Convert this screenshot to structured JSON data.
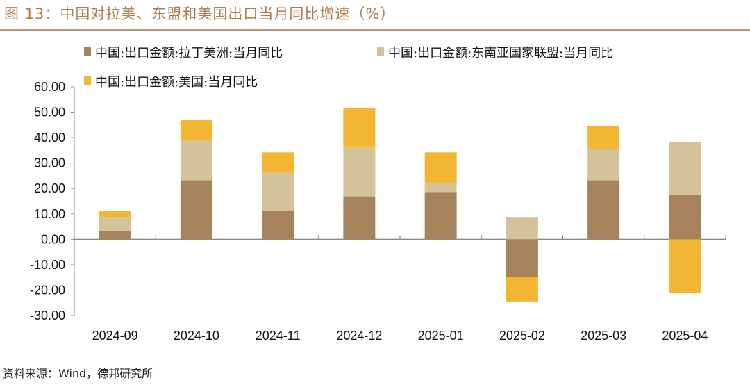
{
  "title": "图 13：中国对拉美、东盟和美国出口当月同比增速（%）",
  "source": "资料来源：Wind，德邦研究所",
  "chart_data": {
    "type": "bar",
    "stacked": true,
    "categories": [
      "2024-09",
      "2024-10",
      "2024-11",
      "2024-12",
      "2025-01",
      "2025-02",
      "2025-03",
      "2025-04"
    ],
    "series": [
      {
        "name": "中国:出口金额:拉丁美洲:当月同比",
        "color": "#A6835B",
        "values": [
          3.1,
          23.2,
          11.1,
          16.9,
          18.6,
          -14.7,
          23.2,
          17.5
        ]
      },
      {
        "name": "中国:出口金额:东南亚国家联盟:当月同比",
        "color": "#D4C29B",
        "values": [
          5.7,
          15.7,
          15.1,
          19.1,
          3.5,
          8.8,
          12.3,
          20.8
        ]
      },
      {
        "name": "中国:出口金额:美国:当月同比",
        "color": "#F2B632",
        "values": [
          2.3,
          8.0,
          8.0,
          15.5,
          12.1,
          -9.8,
          9.1,
          -21.0
        ]
      }
    ],
    "yticks": [
      "60.00",
      "50.00",
      "40.00",
      "30.00",
      "20.00",
      "10.00",
      "0.00",
      "-10.00",
      "-20.00",
      "-30.00"
    ],
    "ylim": [
      -30,
      60
    ],
    "grid": false,
    "legend": "top"
  }
}
